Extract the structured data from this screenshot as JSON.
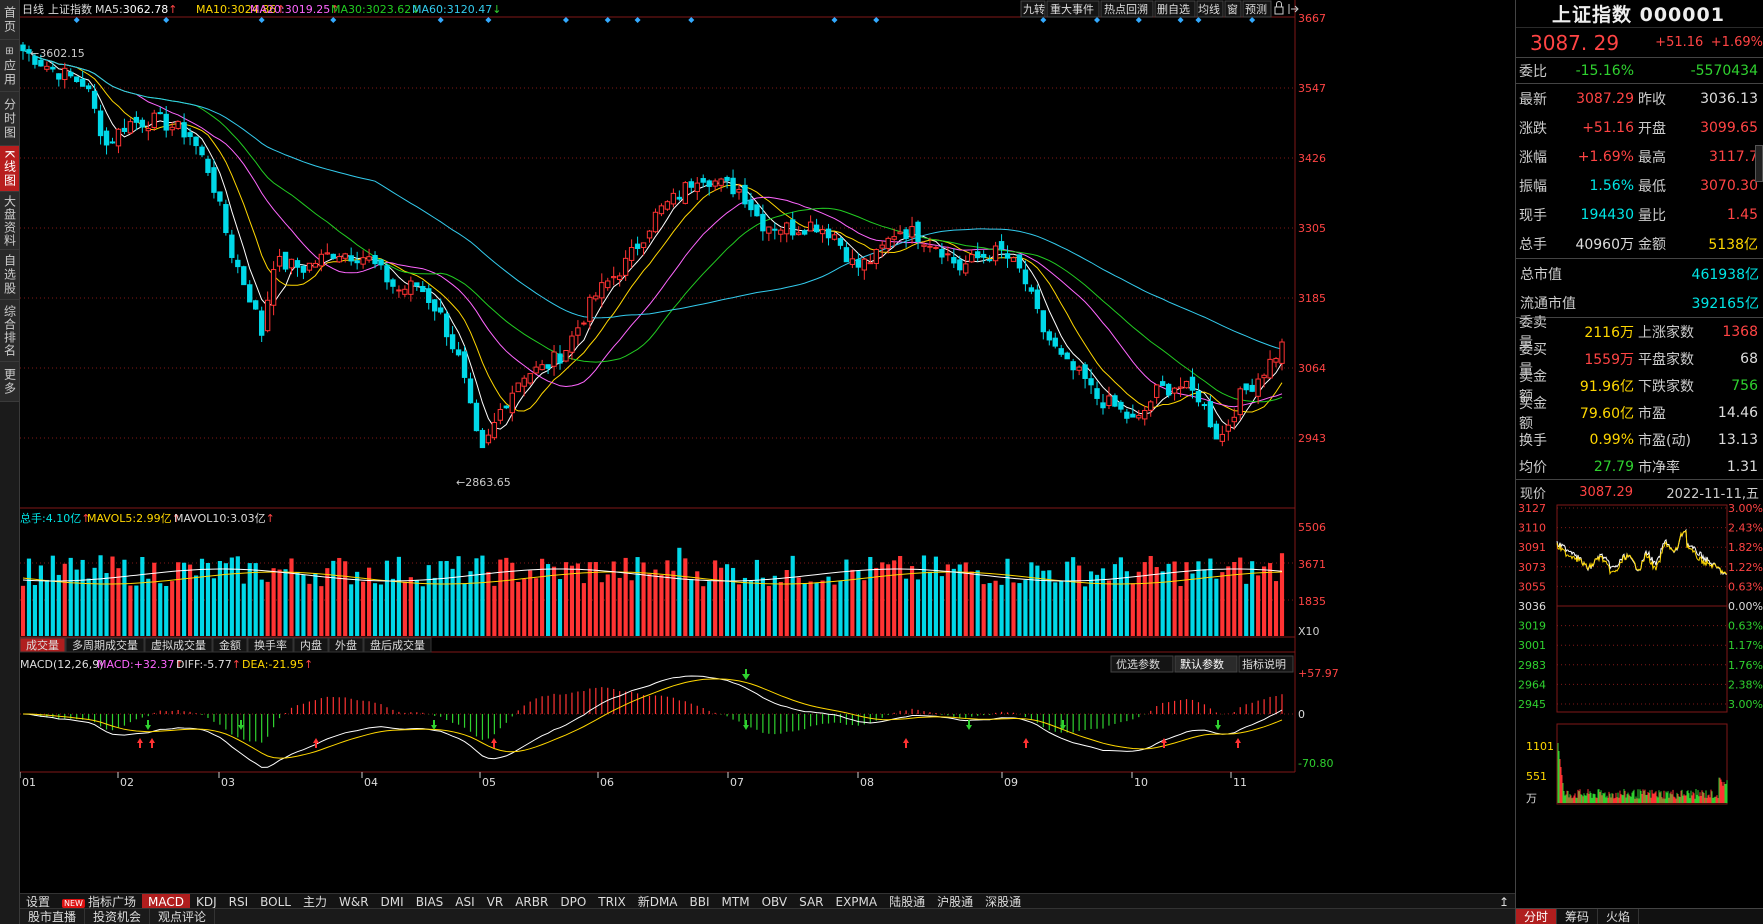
{
  "colors": {
    "up": "#ff3333",
    "down": "#00d8e8",
    "ma5": "#ffffff",
    "ma10": "#ffd700",
    "ma20": "#ff66ff",
    "ma30": "#22cc22",
    "ma60": "#33ccee",
    "grid": "#801818"
  },
  "left_nav": [
    "首页",
    "应用",
    "分时图",
    "K线图",
    "大盘资料",
    "自选股",
    "综合排名",
    "更多"
  ],
  "left_nav_icons": {
    "home": "home-icon"
  },
  "top": {
    "period": "日线",
    "name": "上证指数",
    "ma": [
      {
        "label": "MA5:",
        "value": "3062.78",
        "arrow": "↑"
      },
      {
        "label": "MA10:",
        "value": "3024.86",
        "arrow": "↑"
      },
      {
        "label": "MA20:",
        "value": "3019.25",
        "arrow": "↑"
      },
      {
        "label": "MA30:",
        "value": "3023.62",
        "arrow": "↓"
      },
      {
        "label": "MA60:",
        "value": "3120.47",
        "arrow": "↓"
      }
    ],
    "buttons": [
      "九转",
      "重大事件",
      "热点回溯",
      "删自选",
      "均线",
      "窗",
      "预测"
    ]
  },
  "kline": {
    "price_ticks": [
      "3667",
      "3547",
      "3426",
      "3305",
      "3185",
      "3064",
      "2943"
    ],
    "high_label": "3602.15",
    "low_label": "2863.65"
  },
  "volume": {
    "legend": [
      {
        "label": "总手:",
        "value": "4.10亿",
        "arrow": "↑"
      },
      {
        "label": "MAVOL5:",
        "value": "2.99亿",
        "arrow": "↑"
      },
      {
        "label": "MAVOL10:",
        "value": "3.03亿",
        "arrow": "↑"
      }
    ],
    "ticks": [
      "5506",
      "3671",
      "1835"
    ],
    "unit": "X10",
    "tabs": [
      "成交量",
      "多周期成交量",
      "虚拟成交量",
      "金额",
      "换手率",
      "内盘",
      "外盘",
      "盘后成交量"
    ]
  },
  "macd": {
    "legend": [
      {
        "label": "MACD(12,26,9)",
        "value": ""
      },
      {
        "label": "MACD:",
        "value": "+32.37",
        "arrow": "↑"
      },
      {
        "label": "DIFF:",
        "value": "-5.77",
        "arrow": "↑"
      },
      {
        "label": "DEA:",
        "value": "-21.95",
        "arrow": "↑"
      }
    ],
    "buttons": [
      "优选参数",
      "默认参数",
      "指标说明"
    ],
    "ticks": [
      "+57.97",
      "0",
      "-70.80"
    ]
  },
  "months": [
    "01",
    "02",
    "03",
    "04",
    "05",
    "06",
    "07",
    "08",
    "09",
    "10",
    "11"
  ],
  "indicator_tabs": [
    "设置",
    "指标广场",
    "MACD",
    "KDJ",
    "RSI",
    "BOLL",
    "主力",
    "W&R",
    "DMI",
    "BIAS",
    "ASI",
    "VR",
    "ARBR",
    "DPO",
    "TRIX",
    "新DMA",
    "BBI",
    "MTM",
    "OBV",
    "SAR",
    "EXPMA",
    "陆股通",
    "沪股通",
    "深股通"
  ],
  "new_badge": "NEW",
  "bottom_tabs": [
    "股市直播",
    "投资机会",
    "观点评论"
  ],
  "right": {
    "title": "上证指数 000001",
    "price": "3087. 29",
    "change": "+51.16",
    "pct": "+1.69%",
    "weibi": {
      "label": "委比",
      "pct": "-15.16%",
      "val": "-5570434"
    },
    "rows": [
      [
        {
          "l": "最新",
          "v": "3087.29",
          "c": "red"
        },
        {
          "l": "昨收",
          "v": "3036.13",
          "c": "white"
        }
      ],
      [
        {
          "l": "涨跌",
          "v": "+51.16",
          "c": "red"
        },
        {
          "l": "开盘",
          "v": "3099.65",
          "c": "red"
        }
      ],
      [
        {
          "l": "涨幅",
          "v": "+1.69%",
          "c": "red"
        },
        {
          "l": "最高",
          "v": "3117.7",
          "c": "red"
        }
      ],
      [
        {
          "l": "振幅",
          "v": "1.56%",
          "c": "cyan"
        },
        {
          "l": "最低",
          "v": "3070.30",
          "c": "red"
        }
      ],
      [
        {
          "l": "现手",
          "v": "194430",
          "c": "cyan"
        },
        {
          "l": "量比",
          "v": "1.45",
          "c": "red"
        }
      ],
      [
        {
          "l": "总手",
          "v": "40960万",
          "c": "white"
        },
        {
          "l": "金额",
          "v": "5138亿",
          "c": "yellow"
        }
      ]
    ],
    "cap": [
      {
        "l": "总市值",
        "v": "461938亿"
      },
      {
        "l": "流通市值",
        "v": "392165亿"
      }
    ],
    "rows2": [
      [
        {
          "l": "委卖量",
          "v": "2116万",
          "c": "yellow"
        },
        {
          "l": "上涨家数",
          "v": "1368",
          "c": "red"
        }
      ],
      [
        {
          "l": "委买量",
          "v": "1559万",
          "c": "red"
        },
        {
          "l": "平盘家数",
          "v": "68",
          "c": "white"
        }
      ],
      [
        {
          "l": "卖金额",
          "v": "91.96亿",
          "c": "yellow"
        },
        {
          "l": "下跌家数",
          "v": "756",
          "c": "green"
        }
      ],
      [
        {
          "l": "买金额",
          "v": "79.60亿",
          "c": "yellow"
        },
        {
          "l": "市盈",
          "v": "14.46",
          "c": "white"
        }
      ],
      [
        {
          "l": "换手",
          "v": "0.99%",
          "c": "yellow"
        },
        {
          "l": "市盈(动)",
          "v": "13.13",
          "c": "white"
        }
      ],
      [
        {
          "l": "均价",
          "v": "27.79",
          "c": "green"
        },
        {
          "l": "市净率",
          "v": "1.31",
          "c": "white"
        }
      ]
    ],
    "now": {
      "label": "现价",
      "value": "3087.29",
      "date": "2022-11-11,五"
    },
    "intraday_ticks_left": [
      "3127",
      "3110",
      "3091",
      "3073",
      "3055",
      "3036",
      "3019",
      "3001",
      "2983",
      "2964",
      "2945"
    ],
    "intraday_ticks_right": [
      "3.00%",
      "2.43%",
      "1.82%",
      "1.22%",
      "0.63%",
      "0.00%",
      "0.63%",
      "1.17%",
      "1.76%",
      "2.38%",
      "3.00%"
    ],
    "intraday_vol": [
      "1101",
      "551",
      "万"
    ],
    "tabs": [
      "分时",
      "筹码",
      "火焰"
    ]
  }
}
